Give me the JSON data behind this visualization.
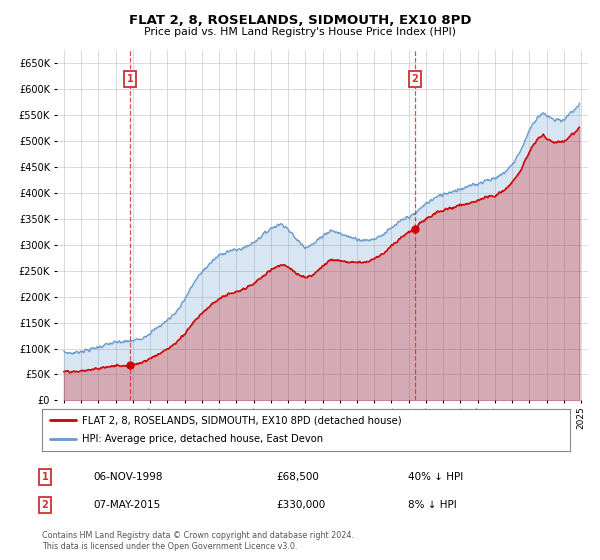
{
  "title": "FLAT 2, 8, ROSELANDS, SIDMOUTH, EX10 8PD",
  "subtitle": "Price paid vs. HM Land Registry's House Price Index (HPI)",
  "legend_line1": "FLAT 2, 8, ROSELANDS, SIDMOUTH, EX10 8PD (detached house)",
  "legend_line2": "HPI: Average price, detached house, East Devon",
  "annotation1_label": "1",
  "annotation1_date": "06-NOV-1998",
  "annotation1_price": "£68,500",
  "annotation1_hpi": "40% ↓ HPI",
  "annotation1_year": 1998.85,
  "annotation1_value_red": 68500,
  "annotation2_label": "2",
  "annotation2_date": "07-MAY-2015",
  "annotation2_price": "£330,000",
  "annotation2_hpi": "8% ↓ HPI",
  "annotation2_year": 2015.35,
  "annotation2_value_red": 330000,
  "footer_line1": "Contains HM Land Registry data © Crown copyright and database right 2024.",
  "footer_line2": "This data is licensed under the Open Government Licence v3.0.",
  "red_color": "#cc0000",
  "blue_color": "#6699cc",
  "bg_color": "#ffffff",
  "grid_color": "#cccccc",
  "box_color": "#cc3333",
  "ylim_max": 675000,
  "ylim_min": 0,
  "xmin": 1994.6,
  "xmax": 2025.4
}
